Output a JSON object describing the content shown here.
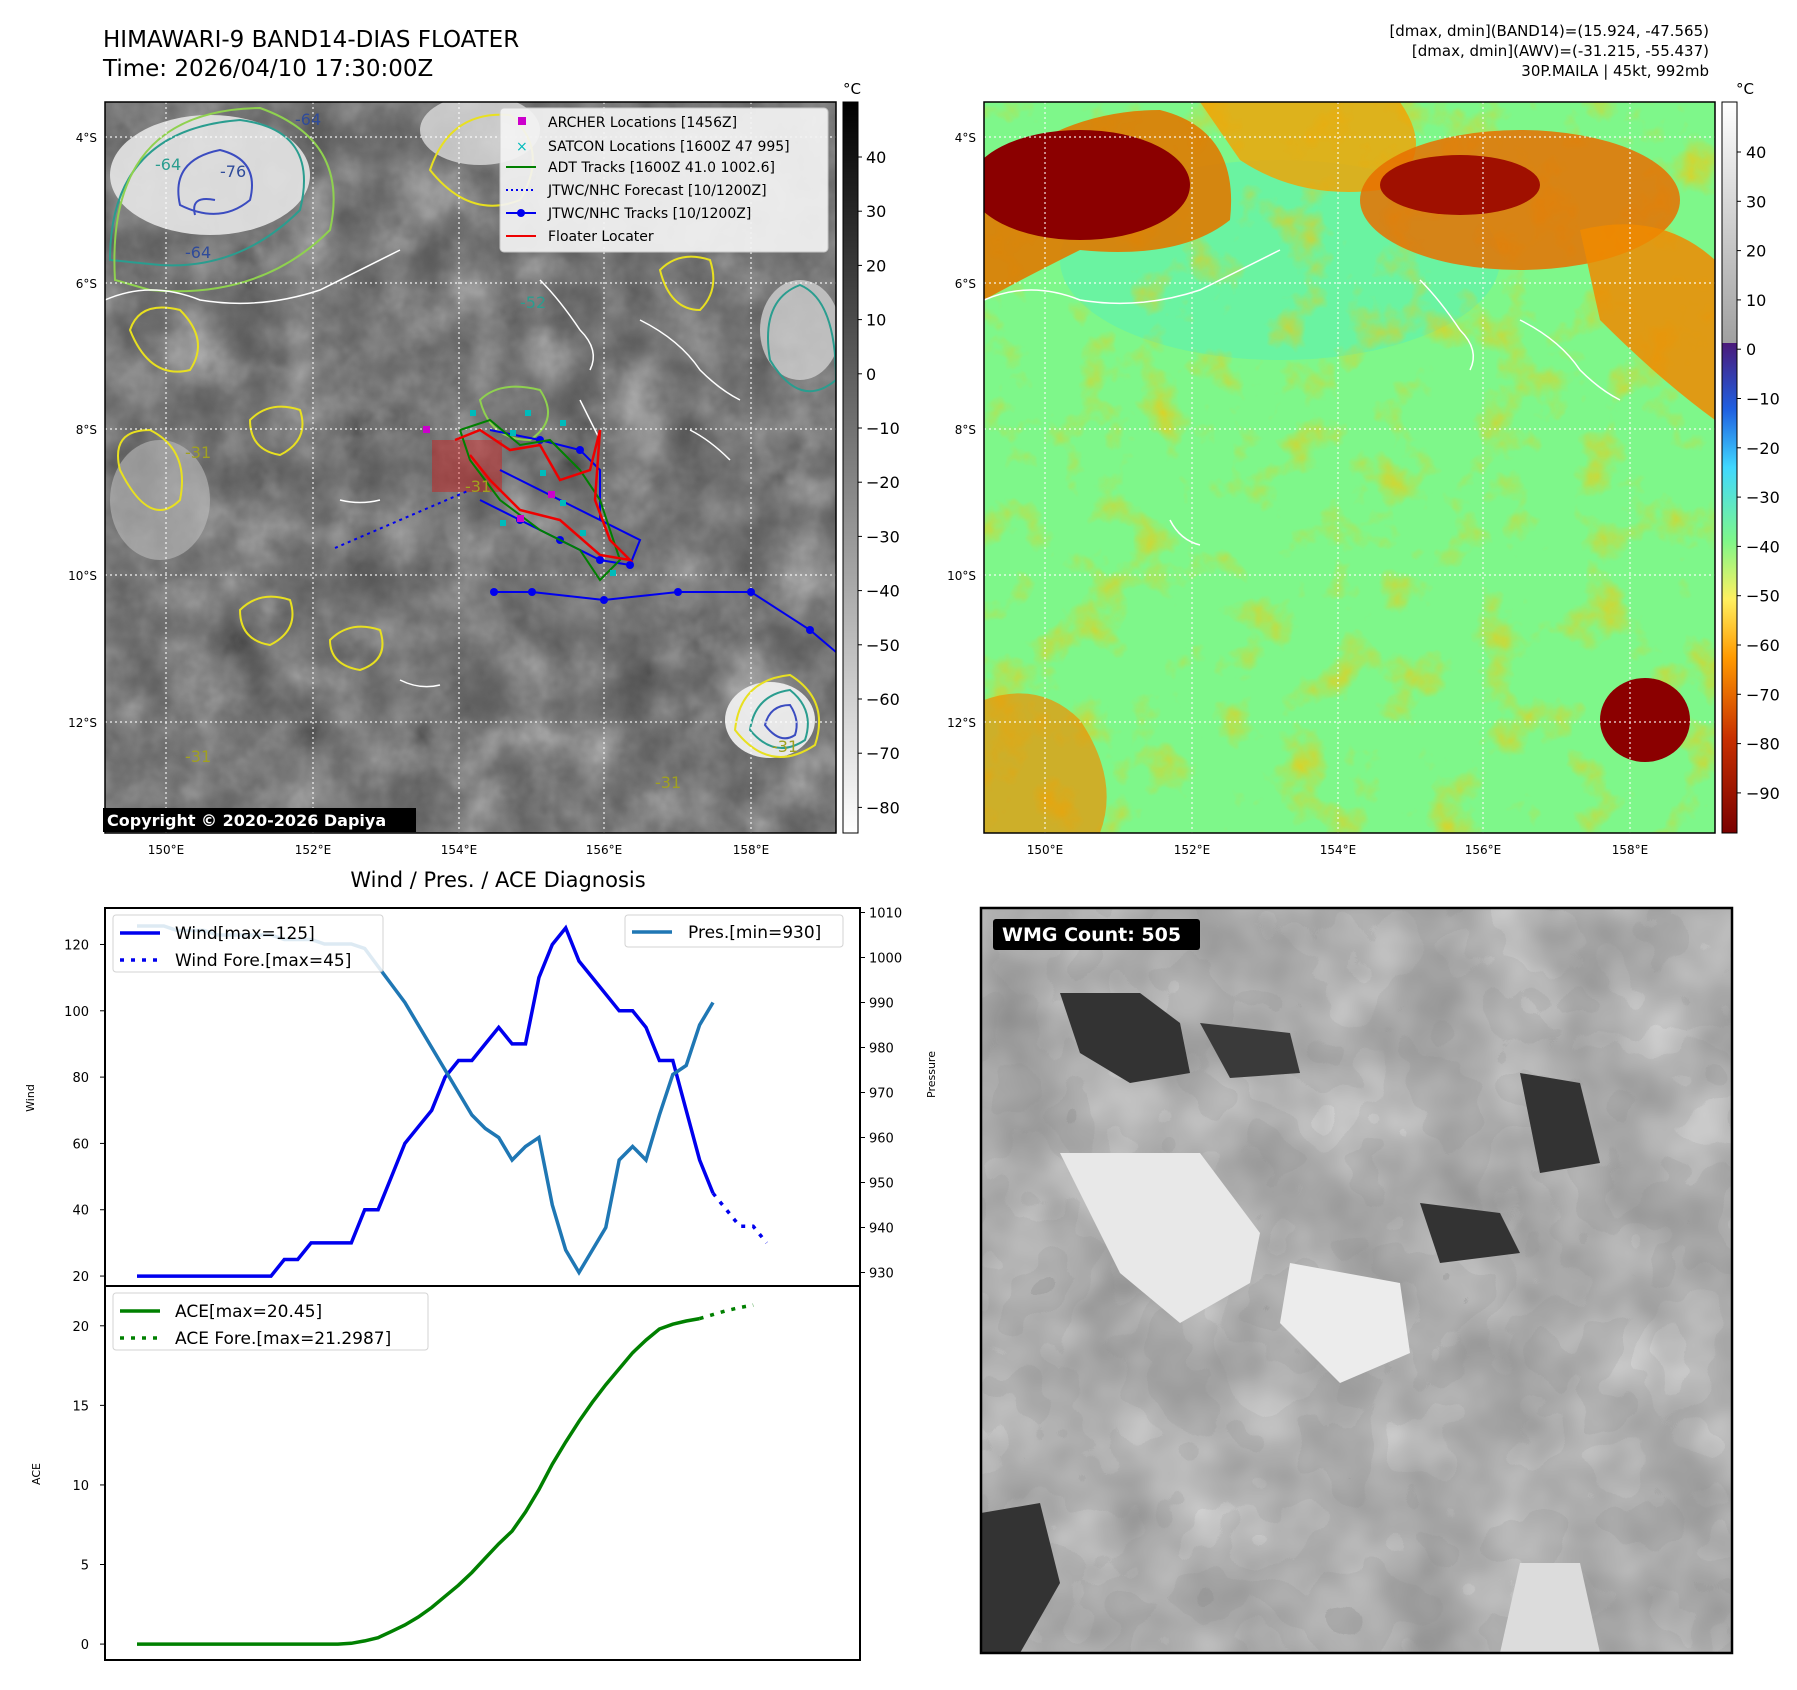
{
  "header": {
    "title": "HIMAWARI-9 BAND14-DIAS FLOATER",
    "time": "Time: 2026/04/10 17:30:00Z",
    "stat1": "[dmax, dmin](BAND14)=(15.924, -47.565)",
    "stat2": "[dmax, dmin](AWV)=(-31.215, -55.437)",
    "storm": "30P.MAILA | 45kt, 992mb"
  },
  "map": {
    "lat_labels": [
      "4°S",
      "6°S",
      "8°S",
      "10°S",
      "12°S"
    ],
    "lon_labels": [
      "150°E",
      "152°E",
      "154°E",
      "156°E",
      "158°E"
    ],
    "copyright": "Copyright © 2020-2026 Dapiya",
    "legend": [
      "ARCHER Locations [1456Z]",
      "SATCON Locations [1600Z 47 995]",
      "ADT Tracks [1600Z 41.0 1002.6]",
      "JTWC/NHC Forecast [10/1200Z]",
      "JTWC/NHC Tracks [10/1200Z]",
      "Floater Locater"
    ],
    "contour_labels": [
      "-64",
      "-76",
      "-64",
      "-64",
      "-52",
      "-31",
      "-31",
      "-31",
      "-31",
      "-31"
    ],
    "colorbar_unit": "°C",
    "ir_colorbar_ticks": [
      "40",
      "30",
      "20",
      "10",
      "0",
      "−10",
      "−20",
      "−30",
      "−40",
      "−50",
      "−60",
      "−70",
      "−80"
    ],
    "wv_colorbar_ticks": [
      "40",
      "30",
      "20",
      "10",
      "0",
      "−10",
      "−20",
      "−30",
      "−40",
      "−50",
      "−60",
      "−70",
      "−80",
      "−90"
    ],
    "colors": {
      "archer": "#cc00cc",
      "satcon": "#00bbbb",
      "adt": "#008000",
      "jtwc": "#0000ee",
      "floater": "#ee0000"
    }
  },
  "wmg": {
    "label": "WMG Count: 505"
  },
  "chart_data": [
    {
      "type": "line",
      "title": "Wind / Pres. / ACE Diagnosis",
      "ylabel": "Wind",
      "y2label": "Pressure",
      "ylim": [
        17,
        131
      ],
      "y2lim": [
        927,
        1011
      ],
      "yticks": [
        "20",
        "40",
        "60",
        "80",
        "100",
        "120"
      ],
      "y2ticks": [
        "930",
        "940",
        "950",
        "960",
        "970",
        "980",
        "990",
        "1000",
        "1010"
      ],
      "series": [
        {
          "name": "Wind[max=125]",
          "color": "#0000ee",
          "style": "solid",
          "values": [
            20,
            20,
            20,
            20,
            20,
            20,
            20,
            20,
            20,
            20,
            20,
            25,
            25,
            30,
            30,
            30,
            30,
            40,
            40,
            50,
            60,
            65,
            70,
            80,
            85,
            85,
            90,
            95,
            90,
            90,
            110,
            120,
            125,
            115,
            110,
            105,
            100,
            100,
            95,
            85,
            85,
            70,
            55,
            45
          ]
        },
        {
          "name": "Wind Fore.[max=45]",
          "color": "#0000ee",
          "style": "dotted",
          "values": [
            45,
            40,
            35,
            35,
            30
          ],
          "start_index": 43
        },
        {
          "name": "Pres.[min=930]",
          "color": "#1f77b4",
          "style": "solid",
          "axis": "right",
          "values": [
            1007,
            1007,
            1007,
            1006,
            1006,
            1006,
            1005,
            1005,
            1005,
            1005,
            1005,
            1004,
            1004,
            1004,
            1003,
            1003,
            1003,
            1002,
            998,
            994,
            990,
            985,
            980,
            975,
            970,
            965,
            962,
            960,
            955,
            958,
            960,
            945,
            935,
            930,
            935,
            940,
            955,
            958,
            955,
            965,
            974,
            976,
            985,
            990
          ]
        }
      ]
    },
    {
      "type": "line",
      "ylabel": "ACE",
      "ylim": [
        -1,
        22.5
      ],
      "yticks": [
        "0",
        "5",
        "10",
        "15",
        "20"
      ],
      "series": [
        {
          "name": "ACE[max=20.45]",
          "color": "#008000",
          "style": "solid",
          "values": [
            0,
            0,
            0,
            0,
            0,
            0,
            0,
            0,
            0,
            0,
            0,
            0,
            0,
            0,
            0,
            0,
            0.05,
            0.2,
            0.4,
            0.8,
            1.2,
            1.7,
            2.3,
            3.0,
            3.7,
            4.5,
            5.4,
            6.3,
            7.1,
            8.3,
            9.7,
            11.3,
            12.7,
            14.0,
            15.2,
            16.3,
            17.3,
            18.3,
            19.1,
            19.8,
            20.1,
            20.3,
            20.45
          ]
        },
        {
          "name": "ACE Fore.[max=21.2987]",
          "color": "#008000",
          "style": "dotted",
          "values": [
            20.45,
            20.7,
            20.95,
            21.15,
            21.2987
          ],
          "start_index": 42
        }
      ]
    }
  ]
}
